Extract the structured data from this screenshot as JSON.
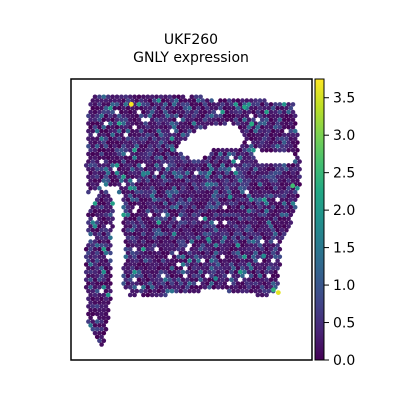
{
  "chart_data": {
    "type": "scatter",
    "title": "UKF260",
    "subtitle": "GNLY expression",
    "xlabel": "",
    "ylabel": "",
    "grid": false,
    "legend": "none",
    "colormap": "viridis",
    "color_range": [
      0.0,
      3.75
    ],
    "colorbar_ticks": [
      "0.0",
      "0.5",
      "1.0",
      "1.5",
      "2.0",
      "2.5",
      "3.0",
      "3.5"
    ],
    "colorbar_tick_values": [
      0.0,
      0.5,
      1.0,
      1.5,
      2.0,
      2.5,
      3.0,
      3.5
    ],
    "highlight_spots": [
      {
        "x": 0.25,
        "y": 0.91,
        "value": 3.7
      },
      {
        "x": 0.75,
        "y": 0.84,
        "value": 2.3
      },
      {
        "x": 0.72,
        "y": 0.9,
        "value": 2.2
      },
      {
        "x": 0.92,
        "y": 0.62,
        "value": 2.6
      },
      {
        "x": 0.86,
        "y": 0.24,
        "value": 3.6
      },
      {
        "x": 0.84,
        "y": 0.25,
        "value": 2.4
      },
      {
        "x": 0.66,
        "y": 0.58,
        "value": 1.8
      },
      {
        "x": 0.3,
        "y": 0.66,
        "value": 1.7
      },
      {
        "x": 0.57,
        "y": 0.43,
        "value": 1.9
      },
      {
        "x": 0.8,
        "y": 0.37,
        "value": 1.8
      },
      {
        "x": 0.42,
        "y": 0.75,
        "value": 1.6
      },
      {
        "x": 0.6,
        "y": 0.29,
        "value": 1.7
      }
    ]
  }
}
